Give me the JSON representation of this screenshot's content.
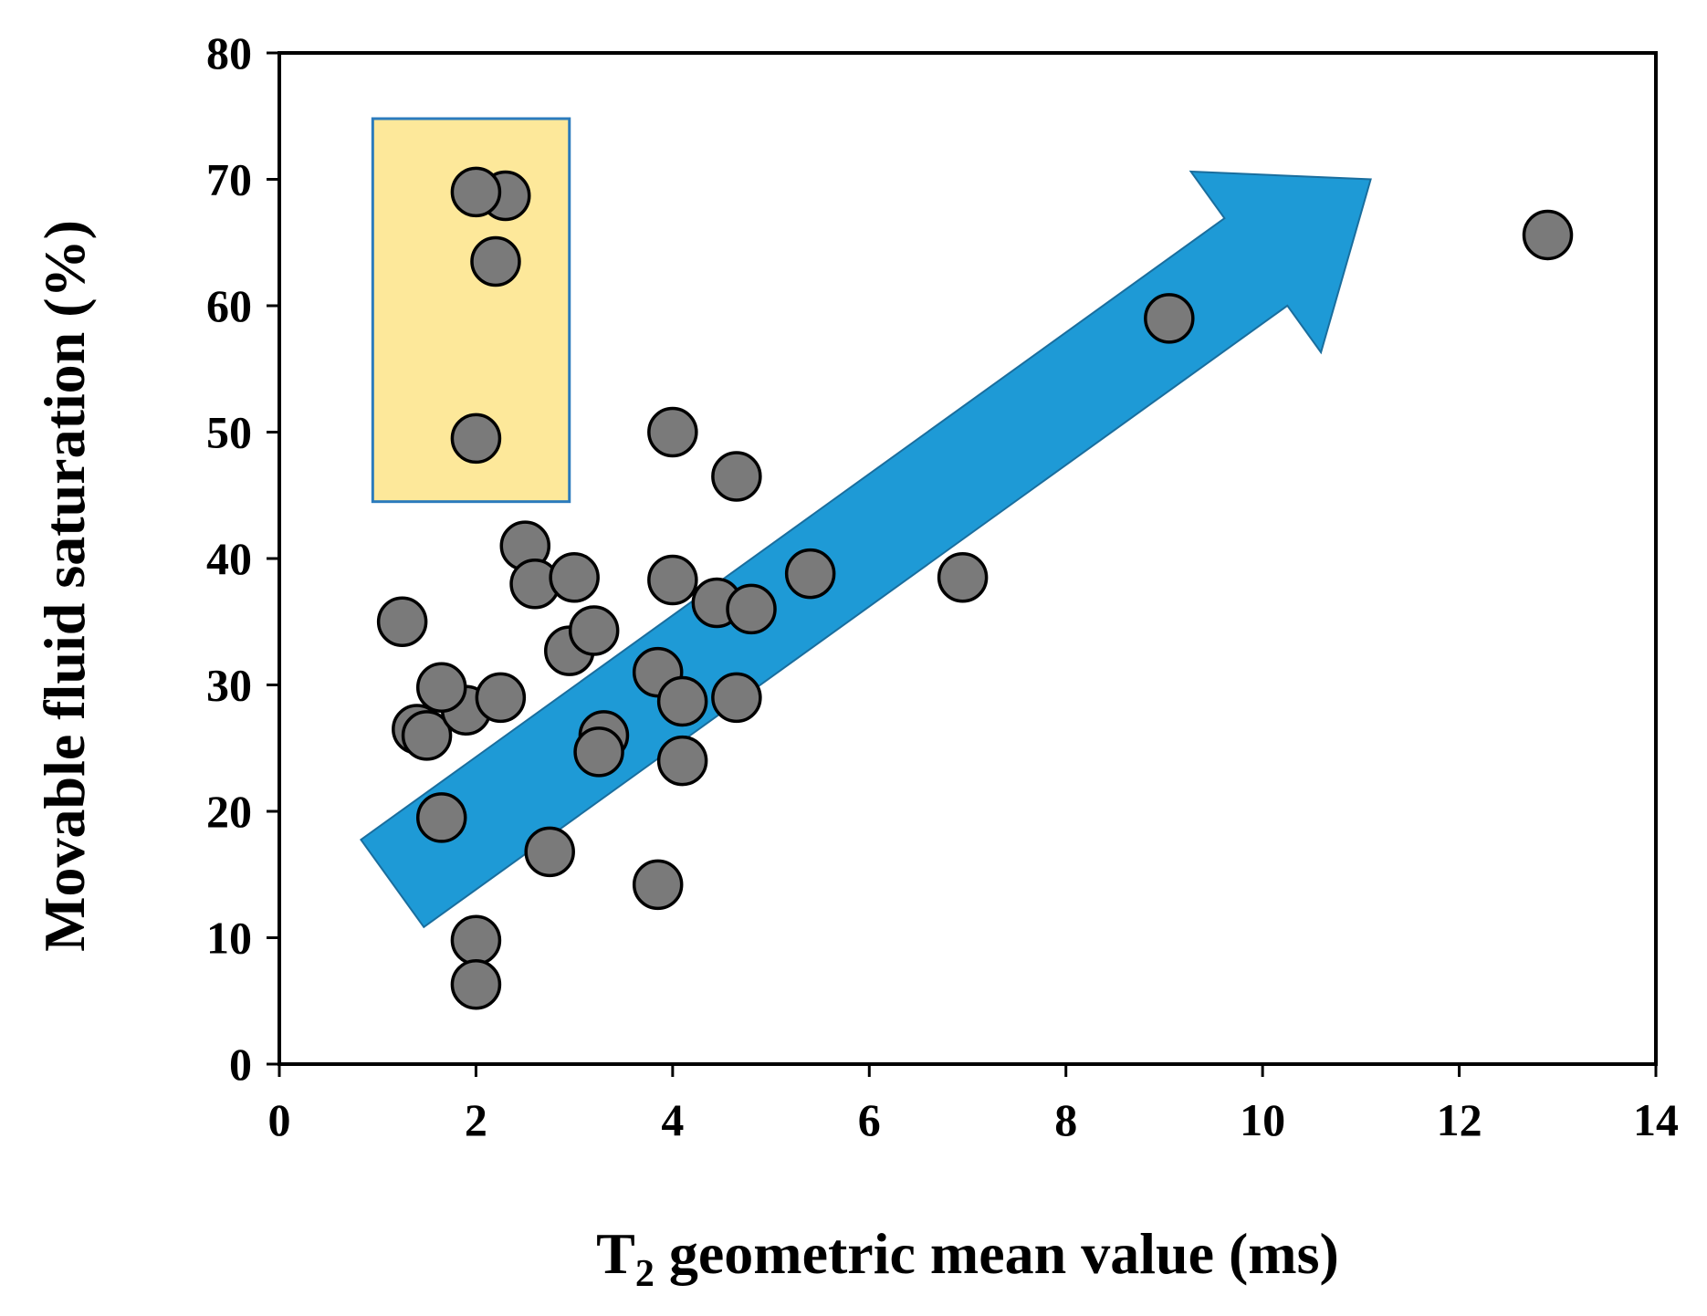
{
  "chart_data": {
    "type": "scatter",
    "title": "",
    "xlabel": {
      "main": "T",
      "subscript": "2",
      "rest": " geometric mean value (ms)"
    },
    "ylabel": "Movable fluid saturation (%)",
    "xlim": [
      0,
      14
    ],
    "ylim": [
      0,
      80
    ],
    "x_ticks": [
      0,
      2,
      4,
      6,
      8,
      10,
      12,
      14
    ],
    "y_ticks": [
      0,
      10,
      20,
      30,
      40,
      50,
      60,
      70,
      80
    ],
    "grid": false,
    "legend": "none",
    "marker_color": "#7a7a7a",
    "marker_edge_color": "#000000",
    "points": [
      {
        "x": 1.25,
        "y": 35.0
      },
      {
        "x": 1.4,
        "y": 26.5
      },
      {
        "x": 1.5,
        "y": 26.0
      },
      {
        "x": 1.65,
        "y": 19.5
      },
      {
        "x": 1.9,
        "y": 28.0
      },
      {
        "x": 1.65,
        "y": 29.8
      },
      {
        "x": 2.25,
        "y": 29.0
      },
      {
        "x": 2.0,
        "y": 9.8
      },
      {
        "x": 2.0,
        "y": 6.3
      },
      {
        "x": 2.0,
        "y": 49.5
      },
      {
        "x": 2.2,
        "y": 63.5
      },
      {
        "x": 2.3,
        "y": 68.7
      },
      {
        "x": 2.0,
        "y": 69.0
      },
      {
        "x": 2.5,
        "y": 41.0
      },
      {
        "x": 2.6,
        "y": 38.0
      },
      {
        "x": 2.75,
        "y": 16.8
      },
      {
        "x": 3.0,
        "y": 38.5
      },
      {
        "x": 2.95,
        "y": 32.7
      },
      {
        "x": 3.2,
        "y": 34.3
      },
      {
        "x": 3.3,
        "y": 26.0
      },
      {
        "x": 3.25,
        "y": 24.7
      },
      {
        "x": 3.85,
        "y": 31.0
      },
      {
        "x": 3.85,
        "y": 14.2
      },
      {
        "x": 4.0,
        "y": 38.3
      },
      {
        "x": 4.0,
        "y": 50.0
      },
      {
        "x": 4.1,
        "y": 28.7
      },
      {
        "x": 4.1,
        "y": 24.0
      },
      {
        "x": 4.45,
        "y": 36.5
      },
      {
        "x": 4.8,
        "y": 36.0
      },
      {
        "x": 4.65,
        "y": 29.0
      },
      {
        "x": 4.65,
        "y": 46.5
      },
      {
        "x": 5.4,
        "y": 38.8
      },
      {
        "x": 6.95,
        "y": 38.5
      },
      {
        "x": 9.05,
        "y": 59.0
      },
      {
        "x": 12.9,
        "y": 65.6
      }
    ],
    "trend_arrow": {
      "from": {
        "x": 1.15,
        "y": 14.3
      },
      "to": {
        "x": 11.1,
        "y": 70.0
      },
      "color": "#1e9ad6",
      "edge_color": "#1a6e9e"
    },
    "highlight_box": {
      "x_range": [
        0.95,
        2.95
      ],
      "y_range": [
        44.5,
        74.8
      ],
      "fill": "#fde89a",
      "edge_color": "#2b7bbd"
    }
  }
}
